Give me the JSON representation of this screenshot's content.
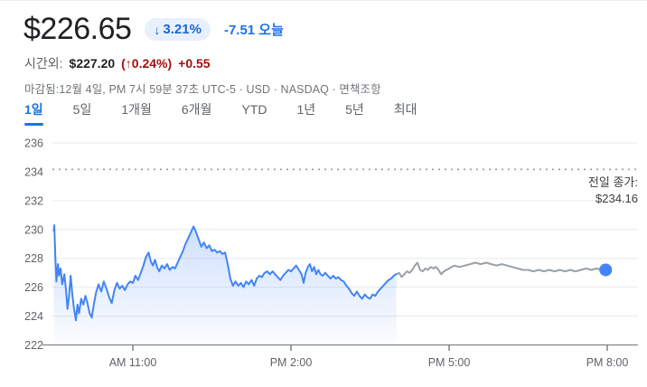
{
  "header": {
    "price": "$226.65",
    "change_badge": {
      "arrow": "↓",
      "percent": "3.21%"
    },
    "change_text": "-7.51 오늘",
    "accent_blue": "#1a73e8"
  },
  "after_hours": {
    "label": "시간외:",
    "price": "$227.20",
    "percent": "(↑0.24%)",
    "change": "+0.55",
    "up_color": "#a50e0e"
  },
  "meta": {
    "status_prefix": "마감됨:12월 4일, PM 7시 59분 37초 UTC-5 · USD · NASDAQ · ",
    "disclaimer": "면책조항"
  },
  "tabs": {
    "items": [
      {
        "id": "1d",
        "label": "1일",
        "selected": true
      },
      {
        "id": "5d",
        "label": "5일",
        "selected": false
      },
      {
        "id": "1m",
        "label": "1개월",
        "selected": false
      },
      {
        "id": "6m",
        "label": "6개월",
        "selected": false
      },
      {
        "id": "ytd",
        "label": "YTD",
        "selected": false
      },
      {
        "id": "1y",
        "label": "1년",
        "selected": false
      },
      {
        "id": "5y",
        "label": "5년",
        "selected": false
      },
      {
        "id": "max",
        "label": "최대",
        "selected": false
      }
    ]
  },
  "chart_data": {
    "type": "line",
    "x_axis": {
      "unit": "hour-of-day",
      "t_start": 9.5,
      "t_end": 20.0,
      "ticks": [
        {
          "t": 11,
          "label": "AM 11:00"
        },
        {
          "t": 14,
          "label": "PM 2:00"
        },
        {
          "t": 17,
          "label": "PM 5:00"
        },
        {
          "t": 20,
          "label": "PM 8:00"
        }
      ]
    },
    "y_axis": {
      "min": 222,
      "max": 236,
      "ticks": [
        236,
        234,
        232,
        230,
        228,
        226,
        224,
        222
      ],
      "solid_grid": [
        236,
        232,
        230,
        228,
        226,
        224
      ],
      "axis_line": 222
    },
    "previous_close": {
      "value": 234.16,
      "label": "전일 종가:",
      "price_text": "$234.16"
    },
    "colors": {
      "regular": "#4285f4",
      "after": "#9aa0a6",
      "grid": "#e8eaed",
      "axis": "#80868b",
      "label": "#5f6368",
      "dotted": "#9aa0a6"
    },
    "series": [
      {
        "name": "regular-hours",
        "color": "#4285f4",
        "area": true,
        "points": [
          [
            9.5,
            229.9
          ],
          [
            9.51,
            230.3
          ],
          [
            9.53,
            228.2
          ],
          [
            9.55,
            226.4
          ],
          [
            9.58,
            227.6
          ],
          [
            9.6,
            226.8
          ],
          [
            9.63,
            227.3
          ],
          [
            9.66,
            226.2
          ],
          [
            9.7,
            226.9
          ],
          [
            9.73,
            225.9
          ],
          [
            9.76,
            224.5
          ],
          [
            9.79,
            225.4
          ],
          [
            9.82,
            226.8
          ],
          [
            9.85,
            225.6
          ],
          [
            9.88,
            224.6
          ],
          [
            9.92,
            223.7
          ],
          [
            9.95,
            224.8
          ],
          [
            9.98,
            224.2
          ],
          [
            10.02,
            225.2
          ],
          [
            10.06,
            224.8
          ],
          [
            10.1,
            225.4
          ],
          [
            10.14,
            224.9
          ],
          [
            10.18,
            224.2
          ],
          [
            10.22,
            223.9
          ],
          [
            10.26,
            224.8
          ],
          [
            10.3,
            225.6
          ],
          [
            10.35,
            226.2
          ],
          [
            10.4,
            225.7
          ],
          [
            10.45,
            226.4
          ],
          [
            10.5,
            225.9
          ],
          [
            10.55,
            225.3
          ],
          [
            10.6,
            224.9
          ],
          [
            10.65,
            225.8
          ],
          [
            10.7,
            226.3
          ],
          [
            10.75,
            225.9
          ],
          [
            10.8,
            226.1
          ],
          [
            10.85,
            225.8
          ],
          [
            10.9,
            226.2
          ],
          [
            10.95,
            226.4
          ],
          [
            11.0,
            226.3
          ],
          [
            11.05,
            226.8
          ],
          [
            11.1,
            226.5
          ],
          [
            11.15,
            227.0
          ],
          [
            11.2,
            227.5
          ],
          [
            11.25,
            228.1
          ],
          [
            11.3,
            228.4
          ],
          [
            11.34,
            227.8
          ],
          [
            11.38,
            227.5
          ],
          [
            11.42,
            227.9
          ],
          [
            11.46,
            227.4
          ],
          [
            11.5,
            227.1
          ],
          [
            11.55,
            227.5
          ],
          [
            11.6,
            227.3
          ],
          [
            11.65,
            227.6
          ],
          [
            11.7,
            227.2
          ],
          [
            11.75,
            227.4
          ],
          [
            11.8,
            227.3
          ],
          [
            11.85,
            227.7
          ],
          [
            11.9,
            228.1
          ],
          [
            11.95,
            228.5
          ],
          [
            12.0,
            229.0
          ],
          [
            12.05,
            229.4
          ],
          [
            12.1,
            229.8
          ],
          [
            12.15,
            230.2
          ],
          [
            12.18,
            230.0
          ],
          [
            12.22,
            229.6
          ],
          [
            12.26,
            229.2
          ],
          [
            12.3,
            228.8
          ],
          [
            12.35,
            229.1
          ],
          [
            12.4,
            228.7
          ],
          [
            12.45,
            228.9
          ],
          [
            12.5,
            228.5
          ],
          [
            12.55,
            228.6
          ],
          [
            12.6,
            228.4
          ],
          [
            12.65,
            228.5
          ],
          [
            12.7,
            228.3
          ],
          [
            12.75,
            228.4
          ],
          [
            12.8,
            227.6
          ],
          [
            12.85,
            226.6
          ],
          [
            12.9,
            226.1
          ],
          [
            12.95,
            226.4
          ],
          [
            13.0,
            226.1
          ],
          [
            13.05,
            226.3
          ],
          [
            13.1,
            226.0
          ],
          [
            13.15,
            226.4
          ],
          [
            13.2,
            226.2
          ],
          [
            13.25,
            226.5
          ],
          [
            13.3,
            226.1
          ],
          [
            13.35,
            226.6
          ],
          [
            13.4,
            226.8
          ],
          [
            13.45,
            226.7
          ],
          [
            13.5,
            227.0
          ],
          [
            13.55,
            227.1
          ],
          [
            13.6,
            226.9
          ],
          [
            13.65,
            227.1
          ],
          [
            13.7,
            226.9
          ],
          [
            13.75,
            226.7
          ],
          [
            13.8,
            226.5
          ],
          [
            13.85,
            226.8
          ],
          [
            13.9,
            227.0
          ],
          [
            13.95,
            227.2
          ],
          [
            14.0,
            227.1
          ],
          [
            14.05,
            227.3
          ],
          [
            14.1,
            227.5
          ],
          [
            14.15,
            227.2
          ],
          [
            14.2,
            226.9
          ],
          [
            14.24,
            226.3
          ],
          [
            14.28,
            227.0
          ],
          [
            14.32,
            227.4
          ],
          [
            14.36,
            227.6
          ],
          [
            14.4,
            227.1
          ],
          [
            14.44,
            227.4
          ],
          [
            14.48,
            226.9
          ],
          [
            14.52,
            227.2
          ],
          [
            14.56,
            226.9
          ],
          [
            14.6,
            226.8
          ],
          [
            14.65,
            227.0
          ],
          [
            14.7,
            226.8
          ],
          [
            14.75,
            226.6
          ],
          [
            14.8,
            226.8
          ],
          [
            14.85,
            226.6
          ],
          [
            14.9,
            226.7
          ],
          [
            14.95,
            226.5
          ],
          [
            15.0,
            226.4
          ],
          [
            15.05,
            226.1
          ],
          [
            15.1,
            225.9
          ],
          [
            15.15,
            225.6
          ],
          [
            15.2,
            225.4
          ],
          [
            15.25,
            225.7
          ],
          [
            15.3,
            225.4
          ],
          [
            15.35,
            225.2
          ],
          [
            15.4,
            225.5
          ],
          [
            15.45,
            225.3
          ],
          [
            15.5,
            225.2
          ],
          [
            15.55,
            225.5
          ],
          [
            15.6,
            225.4
          ],
          [
            15.65,
            225.7
          ],
          [
            15.7,
            225.9
          ],
          [
            15.75,
            226.1
          ],
          [
            15.8,
            226.3
          ],
          [
            15.85,
            226.5
          ],
          [
            15.9,
            226.6
          ],
          [
            15.95,
            226.8
          ],
          [
            16.0,
            226.9
          ]
        ]
      },
      {
        "name": "after-hours",
        "color": "#9aa0a6",
        "area": false,
        "points": [
          [
            16.0,
            226.9
          ],
          [
            16.05,
            227.0
          ],
          [
            16.1,
            226.7
          ],
          [
            16.15,
            226.9
          ],
          [
            16.2,
            227.1
          ],
          [
            16.25,
            227.0
          ],
          [
            16.3,
            227.2
          ],
          [
            16.35,
            227.5
          ],
          [
            16.4,
            227.7
          ],
          [
            16.45,
            227.2
          ],
          [
            16.5,
            227.1
          ],
          [
            16.55,
            227.3
          ],
          [
            16.6,
            227.2
          ],
          [
            16.65,
            227.4
          ],
          [
            16.7,
            227.3
          ],
          [
            16.75,
            227.4
          ],
          [
            16.8,
            227.2
          ],
          [
            16.85,
            226.9
          ],
          [
            16.9,
            227.1
          ],
          [
            16.95,
            227.2
          ],
          [
            17.0,
            227.3
          ],
          [
            17.1,
            227.5
          ],
          [
            17.2,
            227.4
          ],
          [
            17.3,
            227.5
          ],
          [
            17.4,
            227.6
          ],
          [
            17.5,
            227.7
          ],
          [
            17.6,
            227.6
          ],
          [
            17.7,
            227.7
          ],
          [
            17.8,
            227.6
          ],
          [
            17.9,
            227.5
          ],
          [
            18.0,
            227.6
          ],
          [
            18.1,
            227.5
          ],
          [
            18.2,
            227.4
          ],
          [
            18.3,
            227.3
          ],
          [
            18.4,
            227.2
          ],
          [
            18.5,
            227.2
          ],
          [
            18.6,
            227.1
          ],
          [
            18.7,
            227.2
          ],
          [
            18.8,
            227.1
          ],
          [
            18.9,
            227.2
          ],
          [
            19.0,
            227.1
          ],
          [
            19.1,
            227.2
          ],
          [
            19.2,
            227.1
          ],
          [
            19.3,
            227.2
          ],
          [
            19.4,
            227.1
          ],
          [
            19.5,
            227.2
          ],
          [
            19.6,
            227.3
          ],
          [
            19.7,
            227.2
          ],
          [
            19.8,
            227.3
          ],
          [
            19.9,
            227.2
          ],
          [
            19.97,
            227.2
          ]
        ]
      }
    ],
    "end_marker": {
      "t": 19.97,
      "price": 227.2,
      "color": "#4285f4"
    }
  }
}
